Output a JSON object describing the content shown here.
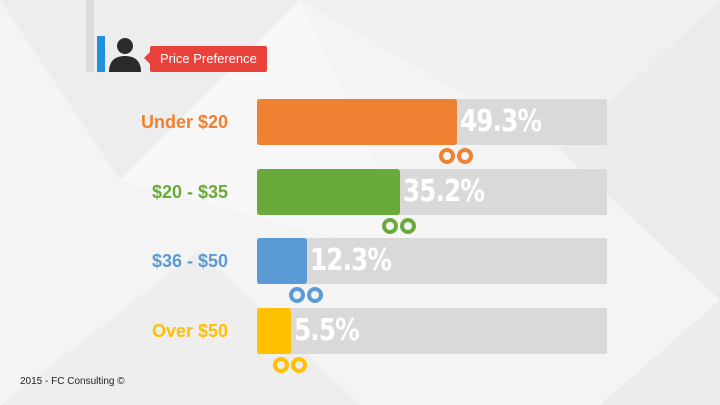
{
  "chart_data": {
    "type": "bar",
    "orientation": "horizontal",
    "title": "Price Preference",
    "categories": [
      "Under $20",
      "$20 - $35",
      "$36 - $50",
      "Over $50"
    ],
    "values": [
      49.3,
      35.2,
      12.3,
      5.5
    ],
    "value_labels": [
      "49.3%",
      "35.2%",
      "12.3%",
      "5.5%"
    ],
    "xlim": [
      0,
      100
    ],
    "colors": [
      "#ef8132",
      "#6aaa3c",
      "#5b9bd5",
      "#ffc000"
    ],
    "grid": false,
    "legend": "none"
  },
  "header": {
    "icon": "person-icon",
    "accent_color": "#1f8fe0",
    "tag_color": "#e9423d"
  },
  "footer": {
    "text": "2015 - FC Consulting ©"
  }
}
